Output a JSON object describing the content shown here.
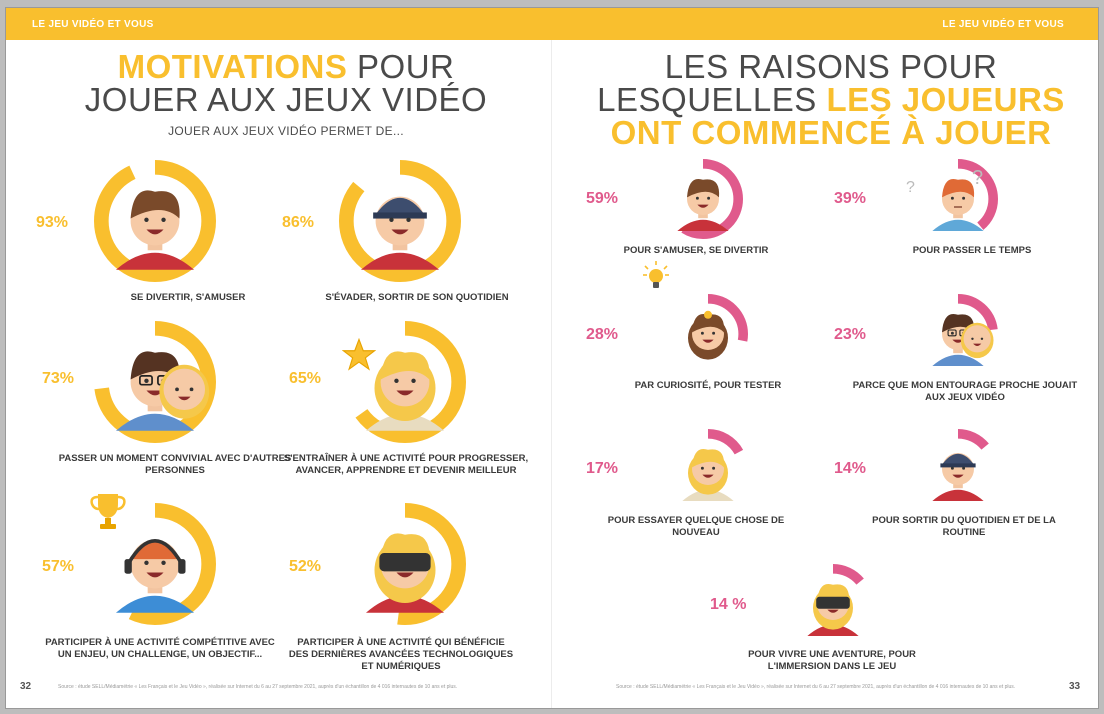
{
  "header": {
    "left": "LE JEU VIDÉO ET VOUS",
    "right": "LE JEU VIDÉO ET VOUS"
  },
  "left_page": {
    "title_highlight": "MOTIVATIONS",
    "title_line1_rest": " POUR",
    "title_line2": "JOUER AUX JEUX VIDÉO",
    "subtitle": "JOUER AUX JEUX VIDÉO PERMET DE...",
    "items": [
      {
        "value": "93%",
        "fraction": 0.93,
        "caption": "SE DIVERTIR, S'AMUSER"
      },
      {
        "value": "86%",
        "fraction": 0.86,
        "caption": "S'ÉVADER, SORTIR DE SON QUOTIDIEN"
      },
      {
        "value": "73%",
        "fraction": 0.73,
        "caption": "PASSER UN MOMENT CONVIVIAL AVEC D'AUTRES PERSONNES"
      },
      {
        "value": "65%",
        "fraction": 0.65,
        "caption": "S'ENTRAÎNER À UNE ACTIVITÉ POUR PROGRESSER, AVANCER, APPRENDRE ET DEVENIR MEILLEUR"
      },
      {
        "value": "57%",
        "fraction": 0.57,
        "caption": "PARTICIPER À UNE ACTIVITÉ COMPÉTITIVE AVEC UN ENJEU, UN CHALLENGE, UN OBJECTIF..."
      },
      {
        "value": "52%",
        "fraction": 0.52,
        "caption": "PARTICIPER À UNE ACTIVITÉ QUI BÉNÉFICIE DES DERNIÈRES AVANCÉES TECHNOLOGIQUES ET NUMÉRIQUES"
      }
    ],
    "footnote": "Source : étude SELL/Médiamétrie « Les Français et le Jeu Vidéo », réalisée sur Internet du 6 au 27 septembre 2021, auprès d'un échantillon de 4 016 internautes de 10 ans et plus.",
    "page_number": "32"
  },
  "right_page": {
    "title_line1": "LES RAISONS POUR",
    "title_line2_plain": "LESQUELLES ",
    "title_line2_highlight": "LES JOUEURS",
    "title_line3_highlight": "ONT COMMENCÉ À JOUER",
    "items": [
      {
        "value": "59%",
        "fraction": 0.59,
        "caption": "POUR S'AMUSER, SE DIVERTIR"
      },
      {
        "value": "39%",
        "fraction": 0.39,
        "caption": "POUR PASSER LE TEMPS"
      },
      {
        "value": "28%",
        "fraction": 0.28,
        "caption": "PAR CURIOSITÉ, POUR TESTER"
      },
      {
        "value": "23%",
        "fraction": 0.23,
        "caption": "PARCE QUE MON ENTOURAGE PROCHE JOUAIT AUX JEUX VIDÉO"
      },
      {
        "value": "17%",
        "fraction": 0.17,
        "caption": "POUR ESSAYER QUELQUE CHOSE DE NOUVEAU"
      },
      {
        "value": "14%",
        "fraction": 0.14,
        "caption": "POUR SORTIR DU QUOTIDIEN ET DE LA ROUTINE"
      },
      {
        "value": "14 %",
        "fraction": 0.14,
        "caption": "POUR VIVRE UNE AVENTURE, POUR L'IMMERSION DANS LE JEU"
      }
    ],
    "footnote": "Source : étude SELL/Médiamétrie « Les Français et le Jeu Vidéo », réalisée sur Internet du 6 au 27 septembre 2021, auprès d'un échantillon de 4 016 internautes de 10 ans et plus.",
    "page_number": "33"
  },
  "colors": {
    "yellow": "#f9bf2e",
    "pink": "#e05a8c",
    "text": "#4a4a4a"
  }
}
